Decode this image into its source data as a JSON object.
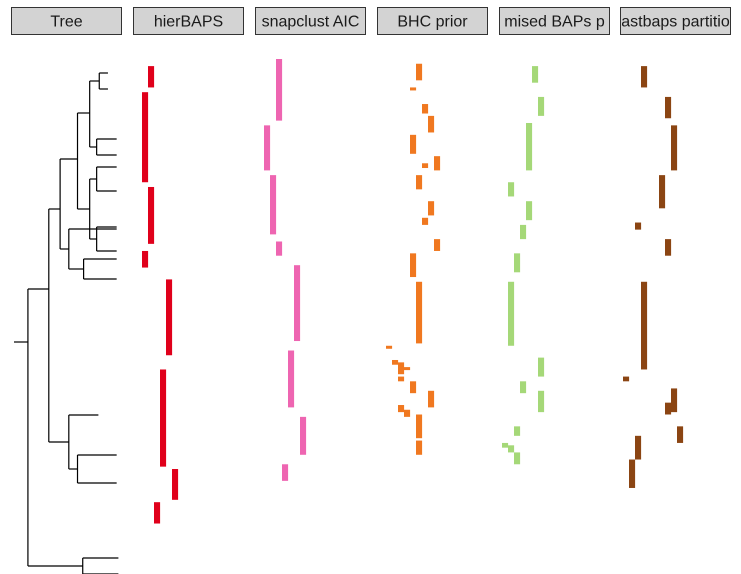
{
  "chart_data": {
    "type": "heatmap",
    "description_free": true,
    "panels": [
      {
        "label": "Tree"
      },
      {
        "label": "hierBAPS",
        "color": "#e0001b"
      },
      {
        "label": "snapclust AIC",
        "color": "#ee65b1"
      },
      {
        "label": "BHC prior",
        "color": "#f07820"
      },
      {
        "label": "mised BAPs p",
        "color": "#a5d878"
      },
      {
        "label": "astbaps partitio",
        "color": "#8b4513"
      }
    ],
    "strip_fill": "#d3d3d3",
    "row_range": [
      0,
      100
    ],
    "tree": {
      "edges": [
        [
          0,
          275,
          16,
          275
        ],
        [
          16,
          222,
          16,
          499
        ],
        [
          16,
          222,
          40,
          222
        ],
        [
          16,
          499,
          79,
          499
        ],
        [
          40,
          142,
          40,
          375
        ],
        [
          40,
          142,
          53,
          142
        ],
        [
          40,
          375,
          63,
          375
        ],
        [
          53,
          92,
          53,
          182
        ],
        [
          53,
          92,
          73,
          92
        ],
        [
          53,
          182,
          63,
          182
        ],
        [
          73,
          46,
          73,
          142
        ],
        [
          73,
          46,
          87,
          46
        ],
        [
          73,
          142,
          87,
          142
        ],
        [
          87,
          14,
          87,
          80
        ],
        [
          87,
          14,
          98,
          14
        ],
        [
          87,
          80,
          95,
          80
        ],
        [
          98,
          6,
          98,
          22
        ],
        [
          98,
          6,
          108,
          6
        ],
        [
          98,
          22,
          108,
          22
        ],
        [
          95,
          72,
          95,
          88
        ],
        [
          95,
          72,
          118,
          72
        ],
        [
          95,
          88,
          118,
          88
        ],
        [
          87,
          112,
          87,
          172
        ],
        [
          87,
          112,
          95,
          112
        ],
        [
          87,
          172,
          95,
          172
        ],
        [
          95,
          100,
          95,
          124
        ],
        [
          95,
          100,
          118,
          100
        ],
        [
          95,
          124,
          118,
          124
        ],
        [
          95,
          160,
          95,
          184
        ],
        [
          95,
          160,
          118,
          160
        ],
        [
          95,
          184,
          118,
          184
        ],
        [
          63,
          162,
          63,
          202
        ],
        [
          63,
          162,
          118,
          162
        ],
        [
          63,
          202,
          80,
          202
        ],
        [
          80,
          192,
          80,
          212
        ],
        [
          80,
          192,
          118,
          192
        ],
        [
          80,
          212,
          118,
          212
        ],
        [
          63,
          348,
          63,
          402
        ],
        [
          63,
          348,
          97,
          348
        ],
        [
          63,
          402,
          73,
          402
        ],
        [
          73,
          388,
          73,
          416
        ],
        [
          73,
          388,
          118,
          388
        ],
        [
          73,
          416,
          118,
          416
        ],
        [
          79,
          491,
          79,
          507
        ],
        [
          79,
          491,
          120,
          491
        ],
        [
          79,
          507,
          120,
          507
        ]
      ]
    },
    "series": [
      {
        "name": "hierBAPS",
        "segments": [
          [
            2,
            3,
            12
          ],
          [
            1,
            14,
            52
          ],
          [
            2,
            54,
            78
          ],
          [
            1,
            81,
            88
          ],
          [
            5,
            93,
            125
          ],
          [
            4,
            131,
            172
          ],
          [
            6,
            173,
            186
          ],
          [
            3,
            187,
            196
          ]
        ]
      },
      {
        "name": "snapclust AIC",
        "segments": [
          [
            3,
            0,
            26
          ],
          [
            1,
            28,
            47
          ],
          [
            2,
            49,
            74
          ],
          [
            3,
            77,
            83
          ],
          [
            6,
            87,
            119
          ],
          [
            5,
            123,
            147
          ],
          [
            7,
            151,
            167
          ],
          [
            4,
            171,
            178
          ]
        ]
      },
      {
        "name": "BHC prior",
        "segments": [
          [
            6,
            2,
            9
          ],
          [
            5,
            12,
            13
          ],
          [
            7,
            19,
            23
          ],
          [
            8,
            24,
            31
          ],
          [
            5,
            32,
            40
          ],
          [
            9,
            41,
            47
          ],
          [
            7,
            44,
            46
          ],
          [
            6,
            49,
            55
          ],
          [
            8,
            60,
            66
          ],
          [
            7,
            67,
            70
          ],
          [
            9,
            76,
            81
          ],
          [
            5,
            82,
            92
          ],
          [
            6,
            94,
            120
          ],
          [
            1,
            121,
            122
          ],
          [
            2,
            127,
            129
          ],
          [
            3,
            128,
            133
          ],
          [
            4,
            130,
            131
          ],
          [
            3,
            134,
            136
          ],
          [
            5,
            136,
            141
          ],
          [
            8,
            140,
            147
          ],
          [
            3,
            146,
            149
          ],
          [
            4,
            148,
            151
          ],
          [
            6,
            150,
            160
          ],
          [
            6,
            161,
            167
          ]
        ]
      },
      {
        "name": "mised BAPs p",
        "segments": [
          [
            5,
            3,
            10
          ],
          [
            6,
            16,
            24
          ],
          [
            4,
            27,
            47
          ],
          [
            1,
            52,
            58
          ],
          [
            4,
            60,
            68
          ],
          [
            3,
            70,
            76
          ],
          [
            2,
            82,
            90
          ],
          [
            1,
            94,
            121
          ],
          [
            6,
            126,
            134
          ],
          [
            3,
            136,
            141
          ],
          [
            6,
            140,
            149
          ],
          [
            2,
            155,
            159
          ],
          [
            0,
            162,
            164
          ],
          [
            1,
            163,
            166
          ],
          [
            2,
            166,
            171
          ]
        ]
      },
      {
        "name": "astbaps partitio",
        "segments": [
          [
            3,
            3,
            12
          ],
          [
            7,
            16,
            25
          ],
          [
            8,
            28,
            47
          ],
          [
            6,
            49,
            63
          ],
          [
            2,
            69,
            72
          ],
          [
            7,
            76,
            83
          ],
          [
            3,
            94,
            131
          ],
          [
            0,
            134,
            136
          ],
          [
            8,
            139,
            149
          ],
          [
            7,
            145,
            150
          ],
          [
            9,
            155,
            162
          ],
          [
            2,
            159,
            169
          ],
          [
            1,
            169,
            181
          ]
        ]
      }
    ]
  }
}
